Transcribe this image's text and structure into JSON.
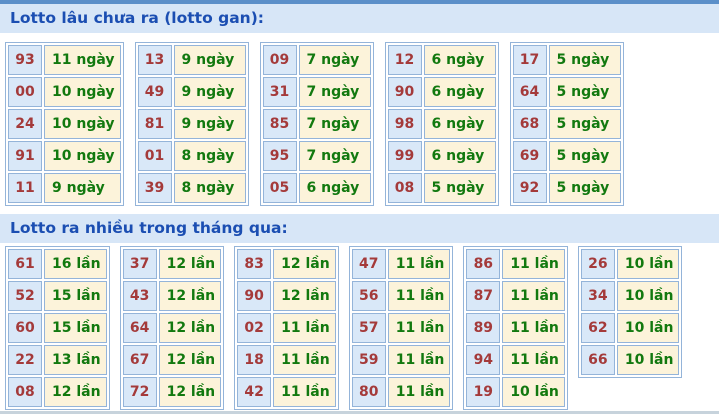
{
  "theme": {
    "accent_bar": "#5b8fc9",
    "band_bg": "#d7e6f7",
    "band_text": "#1b4eb2",
    "cell_border": "#94b4d9",
    "number_bg": "#d9e8f8",
    "number_text": "#a43a3a",
    "value_bg": "#fcf3da",
    "value_text": "#12790f",
    "bottom_strip": "#c7d3dc"
  },
  "sections": [
    {
      "id": "lotto-gan",
      "title": "Lotto lâu chưa ra (lotto gan):",
      "unit": "ngày",
      "tables": [
        {
          "rows": [
            {
              "number": "93",
              "value": "11 ngày"
            },
            {
              "number": "00",
              "value": "10 ngày"
            },
            {
              "number": "24",
              "value": "10 ngày"
            },
            {
              "number": "91",
              "value": "10 ngày"
            },
            {
              "number": "11",
              "value": "9 ngày"
            }
          ]
        },
        {
          "rows": [
            {
              "number": "13",
              "value": "9 ngày"
            },
            {
              "number": "49",
              "value": "9 ngày"
            },
            {
              "number": "81",
              "value": "9 ngày"
            },
            {
              "number": "01",
              "value": "8 ngày"
            },
            {
              "number": "39",
              "value": "8 ngày"
            }
          ]
        },
        {
          "rows": [
            {
              "number": "09",
              "value": "7 ngày"
            },
            {
              "number": "31",
              "value": "7 ngày"
            },
            {
              "number": "85",
              "value": "7 ngày"
            },
            {
              "number": "95",
              "value": "7 ngày"
            },
            {
              "number": "05",
              "value": "6 ngày"
            }
          ]
        },
        {
          "rows": [
            {
              "number": "12",
              "value": "6 ngày"
            },
            {
              "number": "90",
              "value": "6 ngày"
            },
            {
              "number": "98",
              "value": "6 ngày"
            },
            {
              "number": "99",
              "value": "6 ngày"
            },
            {
              "number": "08",
              "value": "5 ngày"
            }
          ]
        },
        {
          "rows": [
            {
              "number": "17",
              "value": "5 ngày"
            },
            {
              "number": "64",
              "value": "5 ngày"
            },
            {
              "number": "68",
              "value": "5 ngày"
            },
            {
              "number": "69",
              "value": "5 ngày"
            },
            {
              "number": "92",
              "value": "5 ngày"
            }
          ]
        }
      ]
    },
    {
      "id": "lotto-frequent",
      "title": "Lotto ra nhiều trong tháng qua:",
      "unit": "lần",
      "tables": [
        {
          "rows": [
            {
              "number": "61",
              "value": "16 lần"
            },
            {
              "number": "52",
              "value": "15 lần"
            },
            {
              "number": "60",
              "value": "15 lần"
            },
            {
              "number": "22",
              "value": "13 lần"
            },
            {
              "number": "08",
              "value": "12 lần"
            }
          ]
        },
        {
          "rows": [
            {
              "number": "37",
              "value": "12 lần"
            },
            {
              "number": "43",
              "value": "12 lần"
            },
            {
              "number": "64",
              "value": "12 lần"
            },
            {
              "number": "67",
              "value": "12 lần"
            },
            {
              "number": "72",
              "value": "12 lần"
            }
          ]
        },
        {
          "rows": [
            {
              "number": "83",
              "value": "12 lần"
            },
            {
              "number": "90",
              "value": "12 lần"
            },
            {
              "number": "02",
              "value": "11 lần"
            },
            {
              "number": "18",
              "value": "11 lần"
            },
            {
              "number": "42",
              "value": "11 lần"
            }
          ]
        },
        {
          "rows": [
            {
              "number": "47",
              "value": "11 lần"
            },
            {
              "number": "56",
              "value": "11 lần"
            },
            {
              "number": "57",
              "value": "11 lần"
            },
            {
              "number": "59",
              "value": "11 lần"
            },
            {
              "number": "80",
              "value": "11 lần"
            }
          ]
        },
        {
          "rows": [
            {
              "number": "86",
              "value": "11 lần"
            },
            {
              "number": "87",
              "value": "11 lần"
            },
            {
              "number": "89",
              "value": "11 lần"
            },
            {
              "number": "94",
              "value": "11 lần"
            },
            {
              "number": "19",
              "value": "10 lần"
            }
          ]
        },
        {
          "rows": [
            {
              "number": "26",
              "value": "10 lần"
            },
            {
              "number": "34",
              "value": "10 lần"
            },
            {
              "number": "62",
              "value": "10 lần"
            },
            {
              "number": "66",
              "value": "10 lần"
            }
          ]
        }
      ]
    }
  ]
}
